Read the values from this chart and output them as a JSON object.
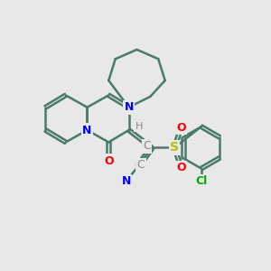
{
  "bg_color": "#e8e8e8",
  "bond_color": "#4a7a6a",
  "bond_width": 1.8,
  "atom_colors": {
    "N": "#0000ff",
    "O": "#ff0000",
    "S": "#bbbb00",
    "Cl": "#00aa00",
    "C_gray": "#888888",
    "H": "#888888"
  },
  "font_size_atoms": 9,
  "font_size_small": 8
}
